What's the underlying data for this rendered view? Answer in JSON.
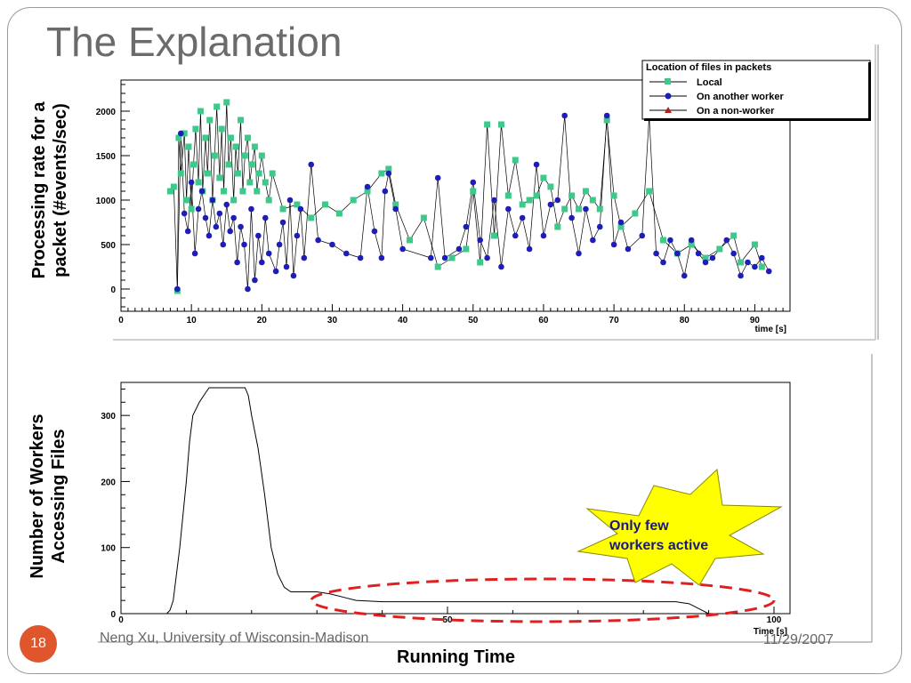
{
  "slide": {
    "title": "The Explanation",
    "number": "18",
    "footer_left": "Neng Xu, University of Wisconsin-Madison",
    "footer_right": "11/29/2007",
    "bottom_caption": "Running Time",
    "callout": [
      "Only few",
      "workers  active"
    ],
    "colors": {
      "title": "#6b6b6b",
      "accent": "#e0562c",
      "callout_fill": "#ffff00",
      "ellipse": "#e02020"
    }
  },
  "chart_data": [
    {
      "type": "scatter",
      "ylabel": [
        "Processing rate for a",
        "packet (#events/sec)"
      ],
      "xlabel": "time [s]",
      "xlim": [
        0,
        95
      ],
      "ylim": [
        -250,
        2350
      ],
      "x_ticks": [
        0,
        10,
        20,
        30,
        40,
        50,
        60,
        70,
        80,
        90
      ],
      "y_ticks": [
        0,
        500,
        1000,
        1500,
        2000
      ],
      "legend": {
        "title": "Location of files in packets",
        "position": "top-right",
        "entries": [
          "Local",
          "On another worker",
          "On a non-worker"
        ]
      },
      "series": [
        {
          "name": "Local",
          "color": "#3cc98a",
          "marker": "square",
          "points": [
            [
              7,
              1100
            ],
            [
              7.5,
              1150
            ],
            [
              8,
              -20
            ],
            [
              8.2,
              1700
            ],
            [
              8.5,
              1300
            ],
            [
              9,
              1750
            ],
            [
              9.3,
              1000
            ],
            [
              9.6,
              1600
            ],
            [
              10,
              900
            ],
            [
              10.3,
              1400
            ],
            [
              10.6,
              1800
            ],
            [
              11,
              1200
            ],
            [
              11.3,
              2000
            ],
            [
              11.6,
              1100
            ],
            [
              12,
              1700
            ],
            [
              12.3,
              1300
            ],
            [
              12.6,
              1900
            ],
            [
              13,
              1000
            ],
            [
              13.3,
              1500
            ],
            [
              13.6,
              2050
            ],
            [
              14,
              1250
            ],
            [
              14.3,
              1800
            ],
            [
              14.6,
              1100
            ],
            [
              15,
              2100
            ],
            [
              15.3,
              1400
            ],
            [
              15.6,
              1700
            ],
            [
              16,
              1000
            ],
            [
              16.3,
              1600
            ],
            [
              16.6,
              1300
            ],
            [
              17,
              1900
            ],
            [
              17.3,
              1100
            ],
            [
              17.6,
              1500
            ],
            [
              18,
              1700
            ],
            [
              18.3,
              1200
            ],
            [
              18.6,
              1400
            ],
            [
              19,
              1600
            ],
            [
              19.3,
              1100
            ],
            [
              19.6,
              1300
            ],
            [
              20,
              1500
            ],
            [
              20.5,
              1200
            ],
            [
              21,
              1000
            ],
            [
              21.5,
              1300
            ],
            [
              23,
              900
            ],
            [
              25,
              950
            ],
            [
              27,
              800
            ],
            [
              29,
              950
            ],
            [
              31,
              850
            ],
            [
              33,
              1000
            ],
            [
              35,
              1100
            ],
            [
              37,
              1300
            ],
            [
              38,
              1350
            ],
            [
              39,
              950
            ],
            [
              41,
              550
            ],
            [
              43,
              800
            ],
            [
              45,
              250
            ],
            [
              47,
              350
            ],
            [
              49,
              450
            ],
            [
              50,
              1100
            ],
            [
              51,
              300
            ],
            [
              52,
              1850
            ],
            [
              53,
              600
            ],
            [
              54,
              1850
            ],
            [
              55,
              1050
            ],
            [
              56,
              1450
            ],
            [
              57,
              950
            ],
            [
              58,
              1000
            ],
            [
              59,
              1050
            ],
            [
              60,
              1250
            ],
            [
              61,
              1150
            ],
            [
              62,
              700
            ],
            [
              63,
              900
            ],
            [
              64,
              1050
            ],
            [
              65,
              900
            ],
            [
              66,
              1100
            ],
            [
              67,
              1000
            ],
            [
              68,
              900
            ],
            [
              69,
              1900
            ],
            [
              70,
              1050
            ],
            [
              71,
              700
            ],
            [
              73,
              850
            ],
            [
              75,
              1100
            ],
            [
              77,
              550
            ],
            [
              79,
              400
            ],
            [
              81,
              500
            ],
            [
              83,
              350
            ],
            [
              85,
              450
            ],
            [
              87,
              600
            ],
            [
              88,
              300
            ],
            [
              90,
              500
            ],
            [
              91,
              250
            ]
          ]
        },
        {
          "name": "On another worker",
          "color": "#1d1db8",
          "marker": "circle",
          "points": [
            [
              8,
              0
            ],
            [
              8.5,
              1750
            ],
            [
              9,
              850
            ],
            [
              9.5,
              650
            ],
            [
              10,
              1200
            ],
            [
              10.5,
              400
            ],
            [
              11,
              900
            ],
            [
              11.5,
              1100
            ],
            [
              12,
              800
            ],
            [
              12.5,
              600
            ],
            [
              13,
              1000
            ],
            [
              13.5,
              700
            ],
            [
              14,
              850
            ],
            [
              14.5,
              500
            ],
            [
              15,
              950
            ],
            [
              15.5,
              650
            ],
            [
              16,
              800
            ],
            [
              16.5,
              300
            ],
            [
              17,
              700
            ],
            [
              17.5,
              500
            ],
            [
              18,
              0
            ],
            [
              18.5,
              900
            ],
            [
              19,
              100
            ],
            [
              19.5,
              600
            ],
            [
              20,
              300
            ],
            [
              20.5,
              800
            ],
            [
              21,
              400
            ],
            [
              22,
              200
            ],
            [
              22.5,
              500
            ],
            [
              23,
              750
            ],
            [
              23.5,
              250
            ],
            [
              24,
              1000
            ],
            [
              24.5,
              150
            ],
            [
              25,
              600
            ],
            [
              25.5,
              900
            ],
            [
              26,
              350
            ],
            [
              27,
              1400
            ],
            [
              28,
              550
            ],
            [
              30,
              500
            ],
            [
              32,
              400
            ],
            [
              34,
              350
            ],
            [
              35,
              1150
            ],
            [
              36,
              650
            ],
            [
              37,
              350
            ],
            [
              37.5,
              1100
            ],
            [
              38,
              1300
            ],
            [
              39,
              900
            ],
            [
              40,
              450
            ],
            [
              44,
              350
            ],
            [
              45,
              1250
            ],
            [
              46,
              350
            ],
            [
              48,
              450
            ],
            [
              49,
              700
            ],
            [
              50,
              1200
            ],
            [
              51,
              550
            ],
            [
              52,
              350
            ],
            [
              53,
              1000
            ],
            [
              54,
              250
            ],
            [
              55,
              900
            ],
            [
              56,
              600
            ],
            [
              57,
              800
            ],
            [
              58,
              450
            ],
            [
              59,
              1400
            ],
            [
              60,
              600
            ],
            [
              61,
              950
            ],
            [
              62,
              1000
            ],
            [
              63,
              1950
            ],
            [
              64,
              800
            ],
            [
              65,
              400
            ],
            [
              66,
              900
            ],
            [
              67,
              550
            ],
            [
              68,
              700
            ],
            [
              69,
              1950
            ],
            [
              70,
              500
            ],
            [
              71,
              750
            ],
            [
              72,
              450
            ],
            [
              74,
              600
            ],
            [
              75,
              1950
            ],
            [
              76,
              400
            ],
            [
              77,
              300
            ],
            [
              78,
              550
            ],
            [
              79,
              400
            ],
            [
              80,
              150
            ],
            [
              81,
              550
            ],
            [
              82,
              400
            ],
            [
              83,
              300
            ],
            [
              84,
              350
            ],
            [
              86,
              550
            ],
            [
              87,
              400
            ],
            [
              88,
              150
            ],
            [
              89,
              300
            ],
            [
              90,
              250
            ],
            [
              91,
              350
            ],
            [
              92,
              200
            ]
          ]
        },
        {
          "name": "On a non-worker",
          "color": "#b02020",
          "marker": "triangle",
          "points": []
        }
      ]
    },
    {
      "type": "line",
      "ylabel": [
        "Number of Workers",
        "Accessing Files"
      ],
      "xlabel": "Time [s]",
      "xlim": [
        0,
        100
      ],
      "ylim": [
        0,
        350
      ],
      "x_ticks": [
        0,
        50,
        100
      ],
      "y_ticks": [
        0,
        100,
        200,
        300
      ],
      "series": [
        {
          "name": "",
          "color": "#000000",
          "points": [
            [
              0,
              0
            ],
            [
              7,
              0
            ],
            [
              7.5,
              5
            ],
            [
              8,
              20
            ],
            [
              9,
              100
            ],
            [
              10,
              200
            ],
            [
              10.5,
              260
            ],
            [
              11,
              300
            ],
            [
              12,
              320
            ],
            [
              13,
              335
            ],
            [
              13.5,
              342
            ],
            [
              19,
              342
            ],
            [
              19.5,
              330
            ],
            [
              20,
              300
            ],
            [
              21,
              250
            ],
            [
              22,
              180
            ],
            [
              23,
              100
            ],
            [
              24,
              60
            ],
            [
              25,
              40
            ],
            [
              26,
              33
            ],
            [
              30,
              33
            ],
            [
              32,
              30
            ],
            [
              34,
              25
            ],
            [
              36,
              20
            ],
            [
              40,
              18
            ],
            [
              60,
              18
            ],
            [
              80,
              18
            ],
            [
              85,
              18
            ],
            [
              87,
              15
            ],
            [
              88,
              10
            ],
            [
              89,
              5
            ],
            [
              90,
              0
            ],
            [
              100,
              0
            ]
          ]
        }
      ]
    }
  ]
}
